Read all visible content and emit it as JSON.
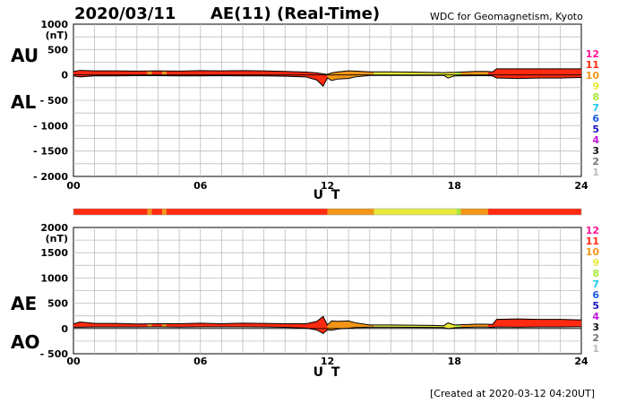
{
  "header": {
    "date": "2020/03/11",
    "title": "AE(11) (Real-Time)",
    "source": "WDC for Geomagnetism, Kyoto"
  },
  "footer": {
    "created": "[Created at 2020-03-12 04:20UT]"
  },
  "chart_data": [
    {
      "type": "area",
      "panel": "AU / AL",
      "label_upper": "AU",
      "label_lower": "AL",
      "unit": "(nT)",
      "xlabel": "U T",
      "xlim": [
        0,
        24
      ],
      "xticks": [
        "00",
        "06",
        "12",
        "18",
        "24"
      ],
      "xtick_values": [
        0,
        6,
        12,
        18,
        24
      ],
      "ylim": [
        -2000,
        1000
      ],
      "yticks": [
        "1000",
        "500",
        "0",
        "- 500",
        "- 1000",
        "- 1500",
        "- 2000"
      ],
      "ytick_values": [
        1000,
        500,
        0,
        -500,
        -1000,
        -1500,
        -2000
      ],
      "grid": true,
      "x_hours": [
        0,
        0.3,
        1,
        2,
        3,
        4,
        5,
        6,
        7,
        8,
        9,
        10,
        11,
        11.5,
        11.8,
        12,
        12.2,
        12.5,
        13,
        13.3,
        14,
        15,
        16,
        17,
        17.5,
        17.7,
        18,
        19,
        19.5,
        19.8,
        20,
        21,
        22,
        23,
        24
      ],
      "series": [
        {
          "name": "AU",
          "values": [
            70,
            90,
            80,
            80,
            75,
            80,
            75,
            85,
            80,
            85,
            80,
            70,
            55,
            40,
            20,
            10,
            40,
            60,
            80,
            75,
            60,
            60,
            55,
            50,
            45,
            50,
            50,
            70,
            70,
            60,
            120,
            120,
            120,
            120,
            120
          ]
        },
        {
          "name": "AL",
          "values": [
            -20,
            -40,
            -20,
            -20,
            -15,
            -15,
            -20,
            -20,
            -15,
            -20,
            -20,
            -25,
            -40,
            -100,
            -220,
            -60,
            -110,
            -80,
            -70,
            -40,
            -10,
            -10,
            -10,
            -10,
            -10,
            -60,
            -20,
            -15,
            -15,
            -20,
            -60,
            -70,
            -60,
            -60,
            -50
          ]
        }
      ]
    },
    {
      "type": "area",
      "panel": "AE / AO",
      "label_upper": "AE",
      "label_lower": "AO",
      "unit": "(nT)",
      "xlabel": "U T",
      "xlim": [
        0,
        24
      ],
      "xticks": [
        "00",
        "06",
        "12",
        "18",
        "24"
      ],
      "xtick_values": [
        0,
        6,
        12,
        18,
        24
      ],
      "ylim": [
        -500,
        2000
      ],
      "yticks": [
        "2000",
        "1500",
        "1000",
        "500",
        "0",
        "- 500"
      ],
      "ytick_values": [
        2000,
        1500,
        1000,
        500,
        0,
        -500
      ],
      "grid": true,
      "x_hours": [
        0,
        0.3,
        1,
        2,
        3,
        4,
        5,
        6,
        7,
        8,
        9,
        10,
        11,
        11.5,
        11.8,
        12,
        12.2,
        12.5,
        13,
        13.3,
        14,
        15,
        16,
        17,
        17.5,
        17.7,
        18,
        19,
        19.5,
        19.8,
        20,
        21,
        22,
        23,
        24
      ],
      "series": [
        {
          "name": "AE",
          "values": [
            90,
            130,
            100,
            100,
            90,
            95,
            95,
            105,
            95,
            105,
            100,
            95,
            95,
            140,
            240,
            70,
            150,
            140,
            150,
            115,
            70,
            70,
            65,
            60,
            55,
            110,
            70,
            85,
            85,
            80,
            180,
            190,
            180,
            180,
            170
          ]
        },
        {
          "name": "AO",
          "values": [
            25,
            25,
            30,
            30,
            30,
            32,
            28,
            32,
            32,
            32,
            30,
            22,
            8,
            -30,
            -100,
            -25,
            -35,
            -10,
            5,
            18,
            25,
            25,
            22,
            20,
            18,
            -5,
            15,
            28,
            28,
            20,
            30,
            25,
            30,
            30,
            35
          ]
        }
      ]
    }
  ],
  "activity_strip": {
    "segments": [
      {
        "start": 0,
        "end": 3.5,
        "level": 11
      },
      {
        "start": 3.5,
        "end": 3.7,
        "level": 10
      },
      {
        "start": 3.7,
        "end": 4.2,
        "level": 11
      },
      {
        "start": 4.2,
        "end": 4.4,
        "level": 10
      },
      {
        "start": 4.4,
        "end": 12,
        "level": 11
      },
      {
        "start": 12,
        "end": 14.2,
        "level": 10
      },
      {
        "start": 14.2,
        "end": 18.1,
        "level": 9
      },
      {
        "start": 18.1,
        "end": 18.3,
        "level": 8
      },
      {
        "start": 18.3,
        "end": 19.6,
        "level": 10
      },
      {
        "start": 19.6,
        "end": 24,
        "level": 11
      }
    ]
  },
  "level_scale": {
    "levels": [
      {
        "label": "12",
        "color": "#ff1493"
      },
      {
        "label": "11",
        "color": "#ff2a10"
      },
      {
        "label": "10",
        "color": "#f39516"
      },
      {
        "label": "9",
        "color": "#e9e93a"
      },
      {
        "label": "8",
        "color": "#a8e83c"
      },
      {
        "label": "7",
        "color": "#1ec8e8"
      },
      {
        "label": "6",
        "color": "#1a5ce0"
      },
      {
        "label": "5",
        "color": "#1a14c0"
      },
      {
        "label": "4",
        "color": "#c010d8"
      },
      {
        "label": "3",
        "color": "#111111"
      },
      {
        "label": "2",
        "color": "#777777"
      },
      {
        "label": "1",
        "color": "#bbbbbb"
      }
    ]
  }
}
